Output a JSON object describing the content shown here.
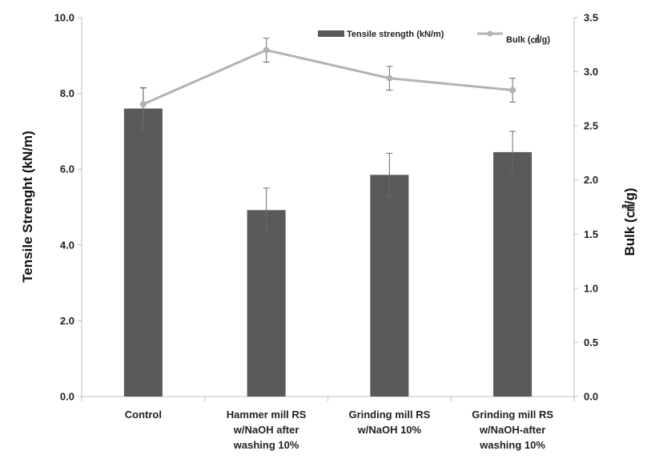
{
  "chart_data": {
    "type": "bar+line",
    "categories": [
      [
        "Control"
      ],
      [
        "Hammer mill RS",
        "w/NaOH after",
        "washing 10%"
      ],
      [
        "Grinding mill RS",
        "w/NaOH 10%"
      ],
      [
        "Grinding mill RS",
        "w/NaOH-after",
        "washing 10%"
      ]
    ],
    "series": [
      {
        "name": "Tensile strength (kN/m)",
        "type": "bar",
        "axis": "left",
        "color": "#595959",
        "values": [
          7.6,
          4.92,
          5.85,
          6.45
        ],
        "errors": [
          0.55,
          0.58,
          0.57,
          0.55
        ]
      },
      {
        "name": "Bulk (㎤/g)",
        "type": "line",
        "axis": "right",
        "color": "#b3b3b3",
        "values": [
          2.7,
          3.2,
          2.94,
          2.83
        ],
        "errors": [
          0.15,
          0.11,
          0.11,
          0.11
        ]
      }
    ],
    "ylabel_left": "Tensile Strenght (kN/m)",
    "ylabel_right": "Bulk (㎤/g)",
    "ylim_left": [
      0,
      10
    ],
    "ylim_right": [
      0,
      3.5
    ],
    "yticks_left": [
      "0.0",
      "2.0",
      "4.0",
      "6.0",
      "8.0",
      "10.0"
    ],
    "yticks_right": [
      "0.0",
      "0.5",
      "1.0",
      "1.5",
      "2.0",
      "2.5",
      "3.0",
      "3.5"
    ],
    "legend_position": "top-right",
    "grid": false
  }
}
